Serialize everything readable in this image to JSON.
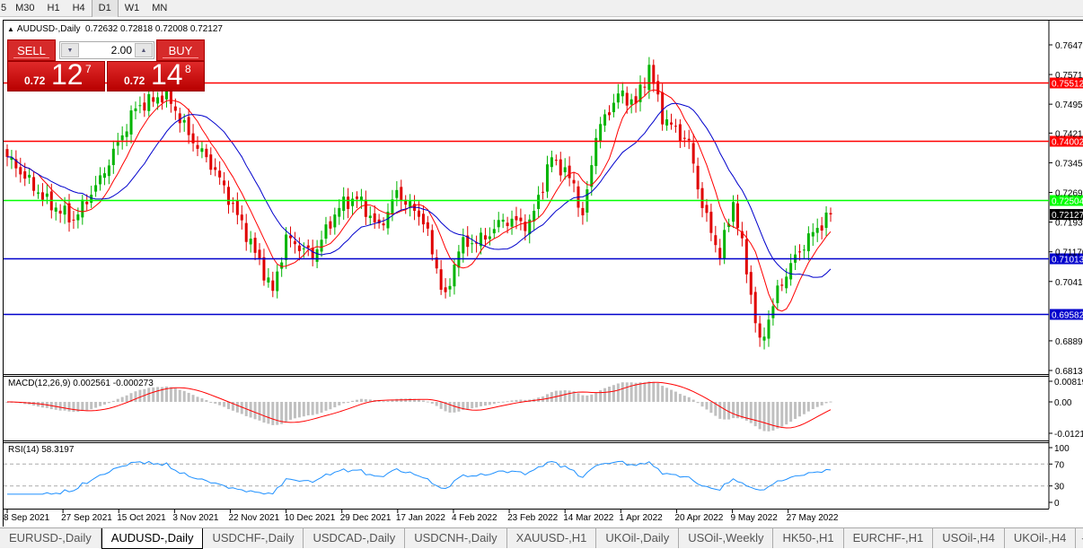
{
  "toolbar": {
    "timeframes": [
      "5",
      "M30",
      "H1",
      "H4",
      "D1",
      "W1",
      "MN"
    ],
    "active": "D1"
  },
  "chart": {
    "symbol_line": "AUDUSD-,Daily",
    "ohlc": "0.72632 0.72818 0.72008 0.72127"
  },
  "trade_panel": {
    "sell_label": "SELL",
    "buy_label": "BUY",
    "lot": "2.00",
    "sell_prefix": "0.72",
    "sell_big": "12",
    "sell_sup": "7",
    "buy_prefix": "0.72",
    "buy_big": "14",
    "buy_sup": "8"
  },
  "macd": {
    "label": "MACD(12,26,9) 0.002561 -0.000273",
    "axis": [
      "0.008197",
      "0.00",
      "-0.01212"
    ]
  },
  "rsi": {
    "label": "RSI(14) 58.3197",
    "axis": [
      "100",
      "70",
      "30",
      "0"
    ]
  },
  "tabs": [
    "EURUSD-,Daily",
    "AUDUSD-,Daily",
    "USDCHF-,Daily",
    "USDCAD-,Daily",
    "USDCNH-,Daily",
    "XAUUSD-,H1",
    "UKOil-,Daily",
    "USOil-,Weekly",
    "HK50-,H1",
    "EURCHF-,H1",
    "USOil-,H4",
    "UKOil-,H4"
  ],
  "active_tab": "AUDUSD-,Daily",
  "colors": {
    "bull": "#00b400",
    "bear": "#e00000",
    "ma_fast": "#ff0000",
    "ma_slow": "#0000cc",
    "rsi": "#1e90ff",
    "macd_hist": "#c0c0c0",
    "macd_signal": "#ff0000"
  },
  "chart_data": {
    "type": "candlestick",
    "price_axis": [
      "0.76470",
      "0.75710",
      "0.74950",
      "0.74210",
      "0.73450",
      "0.72690",
      "0.71930",
      "0.71170",
      "0.70410",
      "0.68890",
      "0.68130"
    ],
    "ylim": [
      0.6813,
      0.7647
    ],
    "date_axis": [
      "8 Sep 2021",
      "27 Sep 2021",
      "15 Oct 2021",
      "3 Nov 2021",
      "22 Nov 2021",
      "10 Dec 2021",
      "29 Dec 2021",
      "17 Jan 2022",
      "4 Feb 2022",
      "23 Feb 2022",
      "14 Mar 2022",
      "1 Apr 2022",
      "20 Apr 2022",
      "9 May 2022",
      "27 May 2022"
    ],
    "key_closes": [
      0.736,
      0.7245,
      0.7199,
      0.7302,
      0.7486,
      0.7521,
      0.7417,
      0.7325,
      0.7164,
      0.7015,
      0.7153,
      0.7107,
      0.7233,
      0.7256,
      0.7176,
      0.7268,
      0.7199,
      0.6992,
      0.713,
      0.7153,
      0.7199,
      0.7187,
      0.736,
      0.7291,
      0.7199,
      0.7417,
      0.7521,
      0.7498,
      0.759,
      0.7463,
      0.7394,
      0.7233,
      0.7107,
      0.7245,
      0.7072,
      0.6877,
      0.7015,
      0.7084,
      0.7153,
      0.72127
    ],
    "levels": [
      {
        "price": "0.75512",
        "color": "#ff0000"
      },
      {
        "price": "0.74002",
        "color": "#ff0000"
      },
      {
        "price": "0.72504",
        "color": "#00ff00"
      },
      {
        "price": "0.71013",
        "color": "#0000cc"
      },
      {
        "price": "0.69582",
        "color": "#0000cc"
      }
    ],
    "current_price": "0.72127"
  }
}
